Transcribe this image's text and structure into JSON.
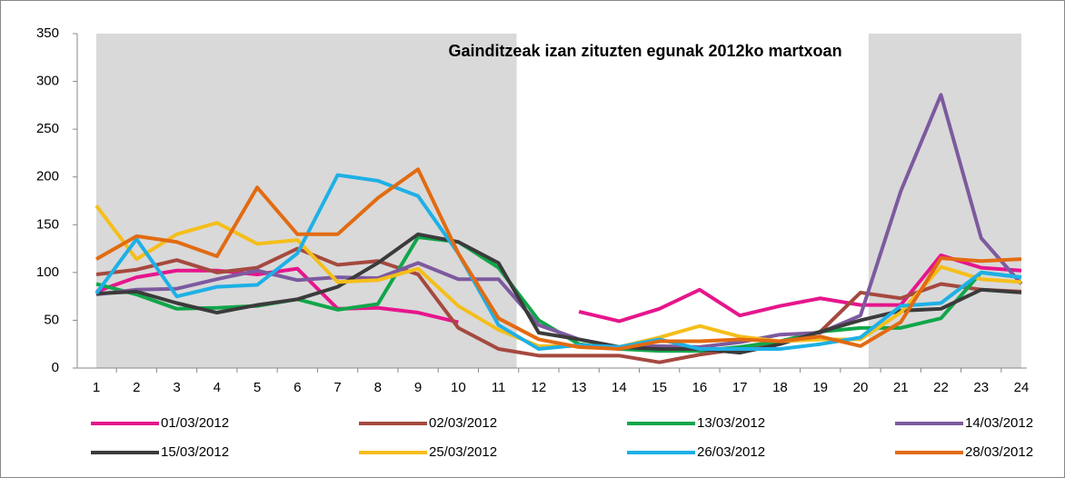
{
  "chart_data": {
    "type": "line",
    "title": "Gainditzeak izan zituzten egunak 2012ko martxoan",
    "categories": [
      "1",
      "2",
      "3",
      "4",
      "5",
      "6",
      "7",
      "8",
      "9",
      "10",
      "11",
      "12",
      "13",
      "14",
      "15",
      "16",
      "17",
      "18",
      "19",
      "20",
      "21",
      "22",
      "23",
      "24"
    ],
    "shaded_ranges": [
      [
        1,
        11.45
      ],
      [
        20.2,
        24
      ]
    ],
    "shade_color": "#d9d9d9",
    "ylim": [
      0,
      350
    ],
    "yticks": [
      0,
      50,
      100,
      150,
      200,
      250,
      300,
      350
    ],
    "grid": false,
    "series": [
      {
        "name": "01/03/2012",
        "color": "#e6168c",
        "values": [
          80,
          95,
          102,
          102,
          98,
          104,
          62,
          63,
          58,
          48,
          null,
          null,
          59,
          49,
          62,
          82,
          55,
          65,
          73,
          66,
          66,
          118,
          105,
          102
        ]
      },
      {
        "name": "02/03/2012",
        "color": "#a5493f",
        "values": [
          98,
          103,
          113,
          100,
          105,
          125,
          108,
          112,
          98,
          42,
          20,
          13,
          13,
          13,
          6,
          14,
          20,
          28,
          38,
          79,
          73,
          88,
          82,
          80
        ]
      },
      {
        "name": "13/03/2012",
        "color": "#10a64a",
        "values": [
          88,
          77,
          62,
          63,
          65,
          72,
          61,
          67,
          137,
          132,
          105,
          50,
          25,
          20,
          18,
          18,
          22,
          28,
          38,
          42,
          42,
          52,
          100,
          95
        ]
      },
      {
        "name": "14/03/2012",
        "color": "#7d5a9e",
        "values": [
          77,
          82,
          83,
          93,
          102,
          92,
          95,
          94,
          110,
          93,
          93,
          45,
          30,
          22,
          23,
          22,
          27,
          35,
          37,
          55,
          185,
          286,
          136,
          88
        ]
      },
      {
        "name": "15/03/2012",
        "color": "#3b3b3b",
        "values": [
          78,
          80,
          68,
          58,
          66,
          72,
          85,
          110,
          140,
          132,
          110,
          37,
          30,
          22,
          20,
          20,
          16,
          25,
          38,
          50,
          60,
          62,
          82,
          79
        ]
      },
      {
        "name": "25/03/2012",
        "color": "#f5be1a",
        "values": [
          170,
          114,
          140,
          152,
          130,
          134,
          90,
          92,
          104,
          65,
          40,
          23,
          23,
          22,
          32,
          44,
          33,
          28,
          30,
          30,
          58,
          106,
          93,
          90
        ]
      },
      {
        "name": "26/03/2012",
        "color": "#1eb0e6",
        "values": [
          78,
          135,
          75,
          85,
          87,
          120,
          202,
          196,
          180,
          120,
          45,
          20,
          24,
          22,
          30,
          20,
          20,
          20,
          25,
          32,
          65,
          68,
          100,
          95
        ]
      },
      {
        "name": "28/03/2012",
        "color": "#e26b12",
        "values": [
          114,
          138,
          132,
          117,
          189,
          140,
          140,
          178,
          208,
          120,
          52,
          30,
          22,
          20,
          28,
          28,
          30,
          28,
          33,
          23,
          48,
          115,
          112,
          114
        ]
      }
    ]
  }
}
